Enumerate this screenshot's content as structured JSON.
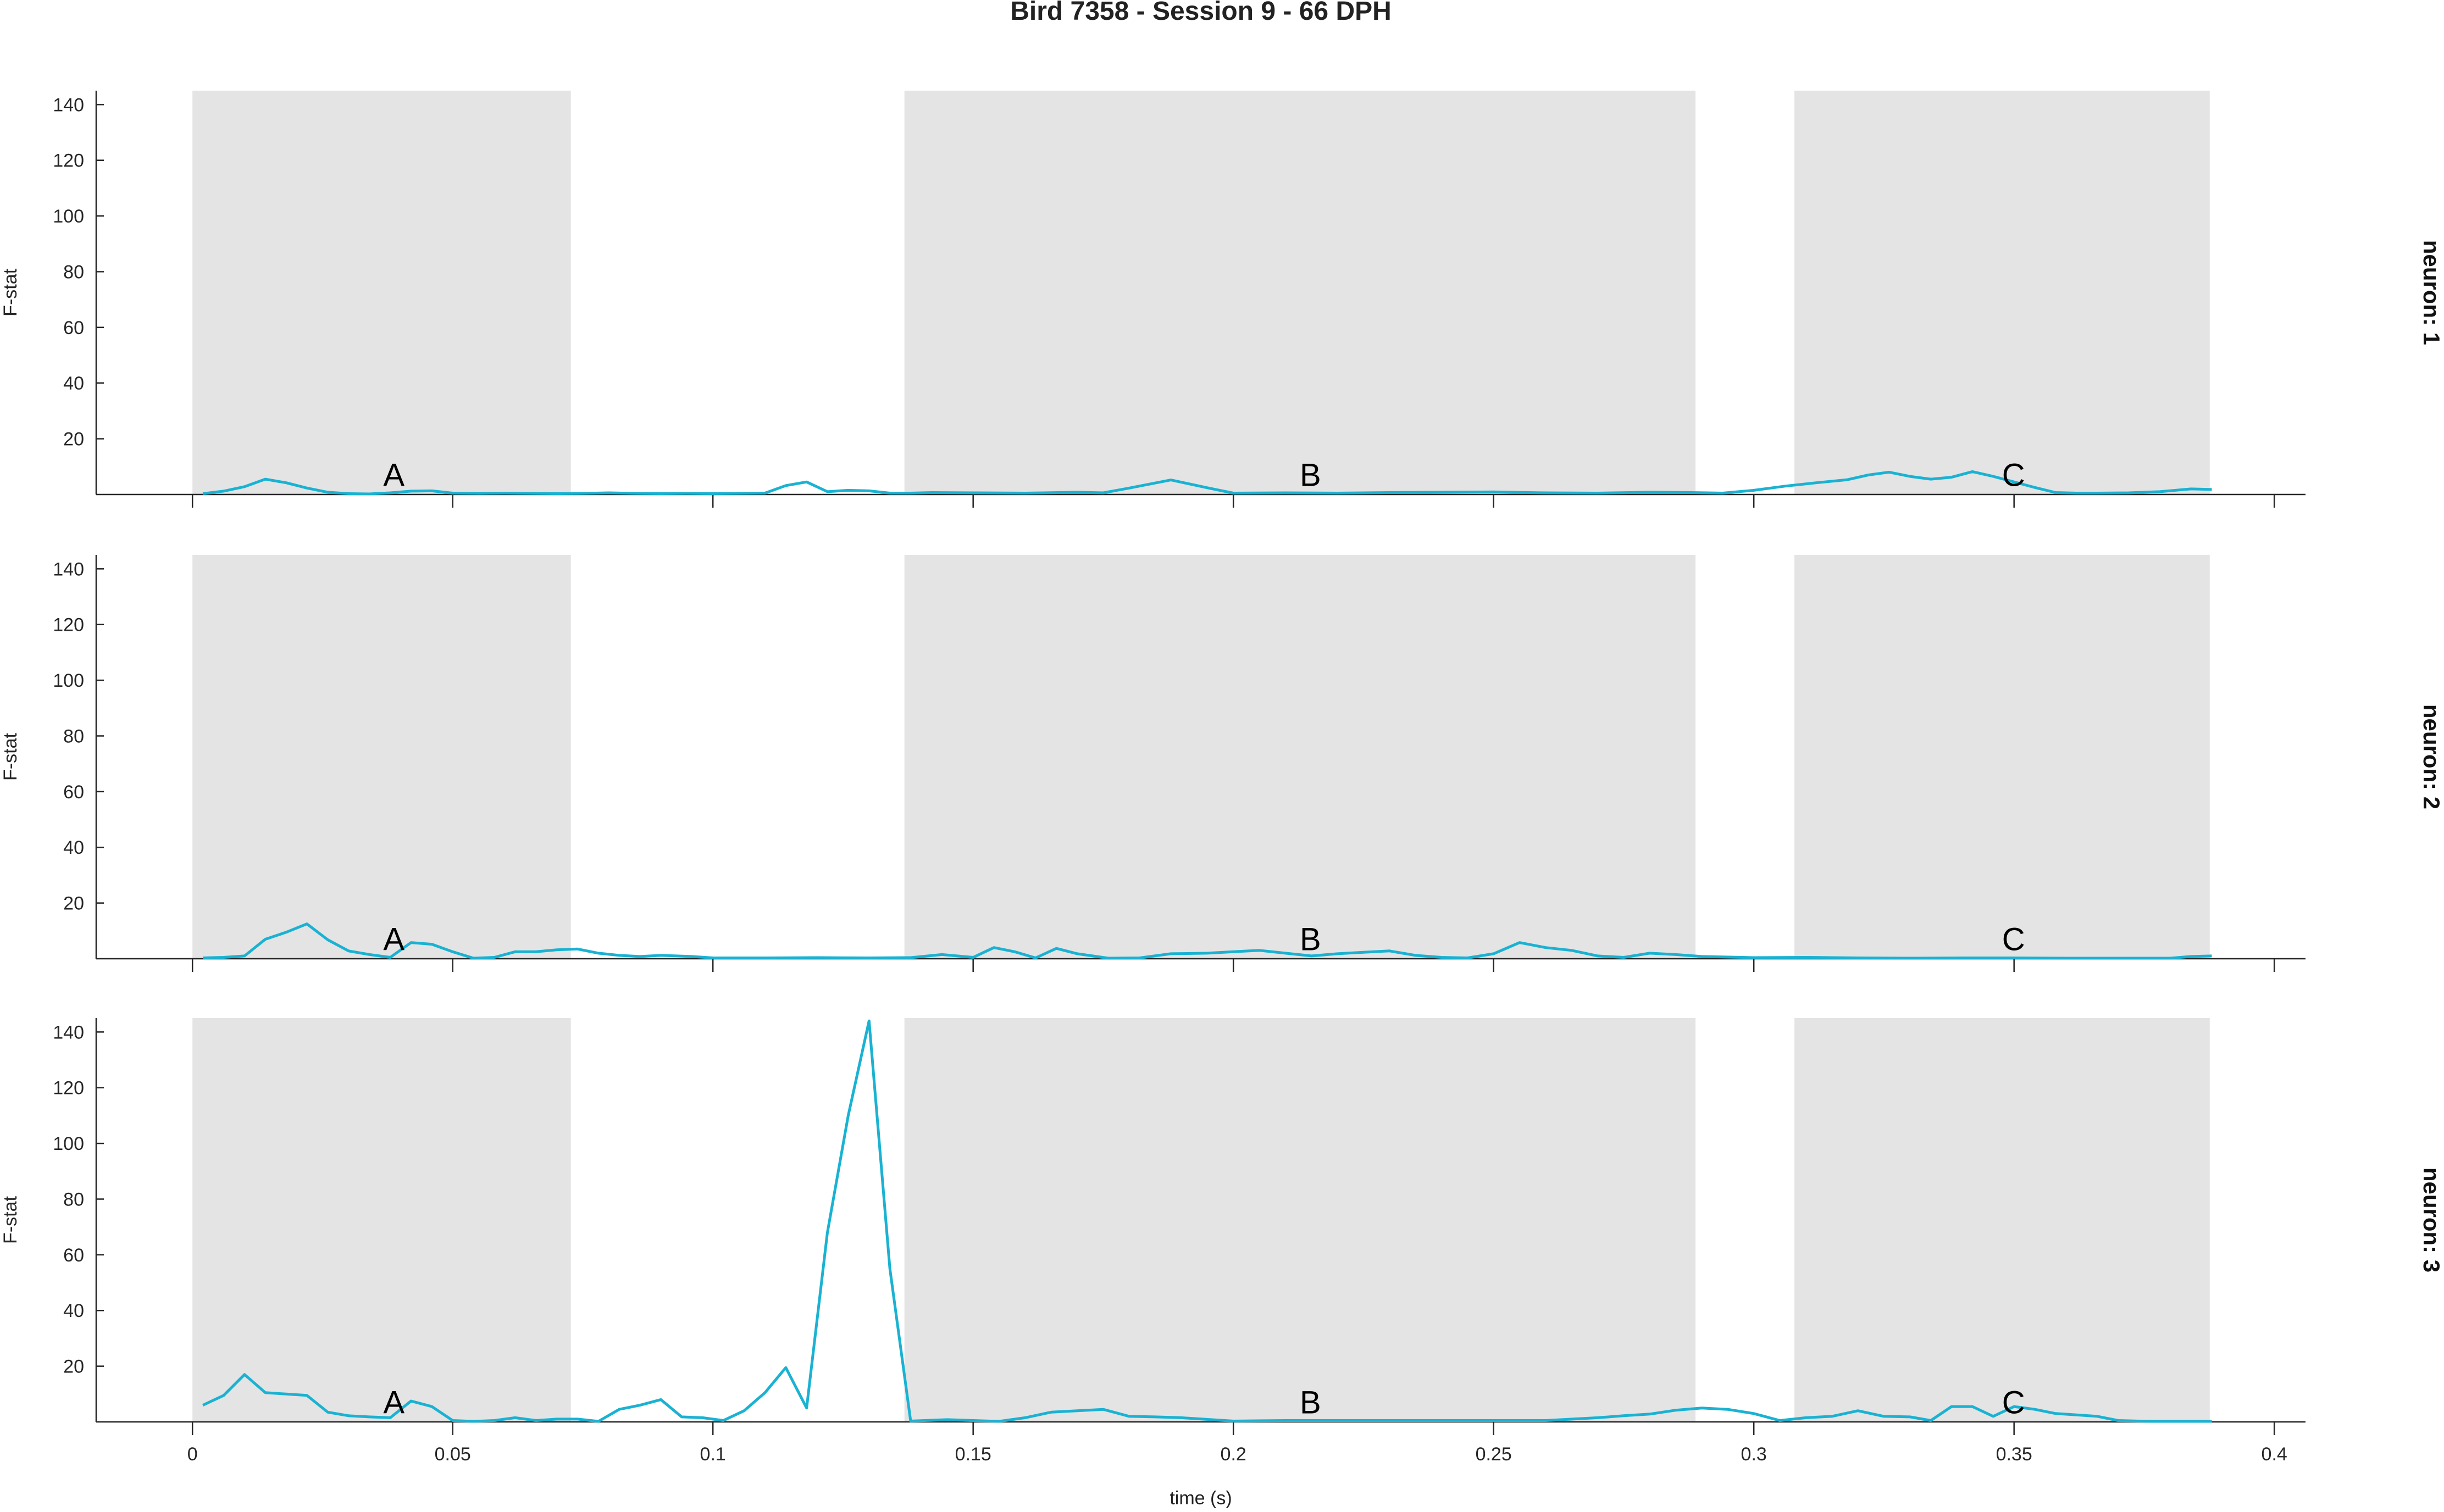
{
  "chart_data": {
    "type": "line",
    "title": "Bird 7358 - Session 9 - 66 DPH",
    "xlabel": "time (s)",
    "ylabel": "F-stat",
    "xlim": [
      -0.0185,
      0.406
    ],
    "ylim": [
      0,
      145
    ],
    "xticks": [
      0,
      0.05,
      0.1,
      0.15,
      0.2,
      0.25,
      0.3,
      0.35,
      0.4
    ],
    "xtick_labels": [
      "0",
      "0.05",
      "0.1",
      "0.15",
      "0.2",
      "0.25",
      "0.3",
      "0.35",
      "0.4"
    ],
    "yticks": [
      20,
      40,
      60,
      80,
      100,
      120,
      140
    ],
    "ytick_labels": [
      "20",
      "40",
      "60",
      "80",
      "100",
      "120",
      "140"
    ],
    "line_color": "#1ab2d2",
    "shade_color": "#e4e4e4",
    "grid": false,
    "segments": [
      {
        "label": "A",
        "start": 0.0,
        "end": 0.0727,
        "label_x": 0.0387
      },
      {
        "label": "B",
        "start": 0.1368,
        "end": 0.2888,
        "label_x": 0.2148
      },
      {
        "label": "C",
        "start": 0.3078,
        "end": 0.3876,
        "label_x": 0.3499
      }
    ],
    "label_y": 7,
    "panels": [
      {
        "side_label": "neuron: 1",
        "series": [
          {
            "name": "neuron 1",
            "x": [
              0.002,
              0.006,
              0.01,
              0.014,
              0.018,
              0.022,
              0.026,
              0.03,
              0.034,
              0.038,
              0.042,
              0.046,
              0.05,
              0.055,
              0.06,
              0.065,
              0.07,
              0.075,
              0.08,
              0.085,
              0.09,
              0.095,
              0.1,
              0.105,
              0.11,
              0.114,
              0.118,
              0.122,
              0.126,
              0.13,
              0.134,
              0.138,
              0.142,
              0.15,
              0.16,
              0.17,
              0.175,
              0.18,
              0.188,
              0.195,
              0.2,
              0.21,
              0.22,
              0.23,
              0.24,
              0.25,
              0.26,
              0.27,
              0.28,
              0.288,
              0.294,
              0.3,
              0.306,
              0.312,
              0.318,
              0.322,
              0.326,
              0.33,
              0.334,
              0.338,
              0.342,
              0.346,
              0.35,
              0.354,
              0.358,
              0.362,
              0.366,
              0.372,
              0.378,
              0.384,
              0.388
            ],
            "y": [
              0.3,
              1.2,
              2.8,
              5.5,
              4.2,
              2.3,
              0.8,
              0.3,
              0.2,
              0.6,
              1.2,
              1.3,
              0.5,
              0.4,
              0.5,
              0.4,
              0.3,
              0.4,
              0.6,
              0.4,
              0.3,
              0.4,
              0.3,
              0.4,
              0.5,
              3.2,
              4.5,
              1.0,
              1.5,
              1.3,
              0.5,
              0.5,
              0.7,
              0.6,
              0.5,
              0.8,
              0.6,
              2.3,
              5.2,
              2.4,
              0.5,
              0.6,
              0.5,
              0.7,
              0.8,
              0.9,
              0.6,
              0.5,
              0.8,
              0.7,
              0.5,
              1.5,
              3.0,
              4.2,
              5.3,
              7.0,
              8.0,
              6.5,
              5.5,
              6.2,
              8.2,
              6.5,
              4.5,
              2.5,
              0.7,
              0.5,
              0.5,
              0.6,
              1.0,
              2.0,
              1.8
            ]
          }
        ]
      },
      {
        "side_label": "neuron: 2",
        "series": [
          {
            "name": "neuron 2",
            "x": [
              0.002,
              0.006,
              0.01,
              0.014,
              0.018,
              0.022,
              0.026,
              0.03,
              0.034,
              0.038,
              0.042,
              0.046,
              0.05,
              0.054,
              0.058,
              0.062,
              0.066,
              0.07,
              0.074,
              0.078,
              0.082,
              0.086,
              0.09,
              0.096,
              0.1,
              0.11,
              0.12,
              0.13,
              0.138,
              0.144,
              0.15,
              0.154,
              0.158,
              0.162,
              0.166,
              0.17,
              0.176,
              0.182,
              0.188,
              0.195,
              0.2,
              0.205,
              0.21,
              0.215,
              0.22,
              0.225,
              0.23,
              0.235,
              0.24,
              0.245,
              0.25,
              0.255,
              0.26,
              0.265,
              0.27,
              0.275,
              0.28,
              0.285,
              0.29,
              0.3,
              0.31,
              0.32,
              0.33,
              0.34,
              0.35,
              0.36,
              0.37,
              0.38,
              0.384,
              0.388
            ],
            "y": [
              0.3,
              0.5,
              1.0,
              7.0,
              9.5,
              12.5,
              6.8,
              2.8,
              1.5,
              0.5,
              5.8,
              5.2,
              2.5,
              0.2,
              0.5,
              2.5,
              2.5,
              3.2,
              3.5,
              2.0,
              1.2,
              0.8,
              1.2,
              0.8,
              0.3,
              0.3,
              0.4,
              0.3,
              0.4,
              1.5,
              0.5,
              4.0,
              2.5,
              0.3,
              3.7,
              1.8,
              0.2,
              0.3,
              1.8,
              2.0,
              2.5,
              3.0,
              2.0,
              1.0,
              1.8,
              2.3,
              2.8,
              1.2,
              0.5,
              0.3,
              1.8,
              5.8,
              4.0,
              3.0,
              1.0,
              0.5,
              2.0,
              1.5,
              0.8,
              0.4,
              0.5,
              0.3,
              0.2,
              0.3,
              0.3,
              0.2,
              0.2,
              0.2,
              0.8,
              1.0
            ]
          }
        ]
      },
      {
        "side_label": "neuron: 3",
        "series": [
          {
            "name": "neuron 3",
            "x": [
              0.002,
              0.006,
              0.01,
              0.014,
              0.018,
              0.022,
              0.026,
              0.03,
              0.034,
              0.038,
              0.042,
              0.046,
              0.05,
              0.054,
              0.058,
              0.062,
              0.066,
              0.07,
              0.074,
              0.078,
              0.082,
              0.086,
              0.09,
              0.094,
              0.098,
              0.102,
              0.106,
              0.11,
              0.114,
              0.118,
              0.122,
              0.126,
              0.13,
              0.134,
              0.138,
              0.145,
              0.15,
              0.155,
              0.16,
              0.165,
              0.17,
              0.175,
              0.18,
              0.185,
              0.19,
              0.2,
              0.21,
              0.22,
              0.23,
              0.24,
              0.25,
              0.26,
              0.27,
              0.275,
              0.28,
              0.285,
              0.29,
              0.295,
              0.3,
              0.305,
              0.31,
              0.315,
              0.32,
              0.325,
              0.33,
              0.334,
              0.338,
              0.342,
              0.346,
              0.35,
              0.354,
              0.358,
              0.362,
              0.366,
              0.37,
              0.376,
              0.38,
              0.384,
              0.388
            ],
            "y": [
              6.0,
              9.5,
              17.0,
              10.5,
              10.0,
              9.5,
              3.5,
              2.2,
              1.8,
              1.5,
              7.5,
              5.5,
              0.5,
              0.2,
              0.5,
              1.5,
              0.5,
              1.0,
              1.0,
              0.2,
              4.5,
              6.0,
              8.0,
              1.8,
              1.5,
              0.5,
              4.0,
              10.5,
              19.5,
              5.0,
              68.0,
              110.0,
              144.0,
              55.0,
              0.3,
              0.8,
              0.5,
              0.2,
              1.5,
              3.5,
              4.0,
              4.5,
              2.0,
              1.8,
              1.5,
              0.3,
              0.5,
              0.5,
              0.5,
              0.5,
              0.5,
              0.5,
              1.5,
              2.2,
              2.8,
              4.2,
              5.0,
              4.5,
              3.0,
              0.5,
              1.5,
              2.0,
              4.0,
              2.0,
              1.8,
              0.5,
              5.5,
              5.5,
              2.0,
              5.5,
              4.5,
              3.0,
              2.5,
              2.0,
              0.5,
              0.2,
              0.2,
              0.2,
              0.2
            ]
          }
        ]
      }
    ]
  }
}
